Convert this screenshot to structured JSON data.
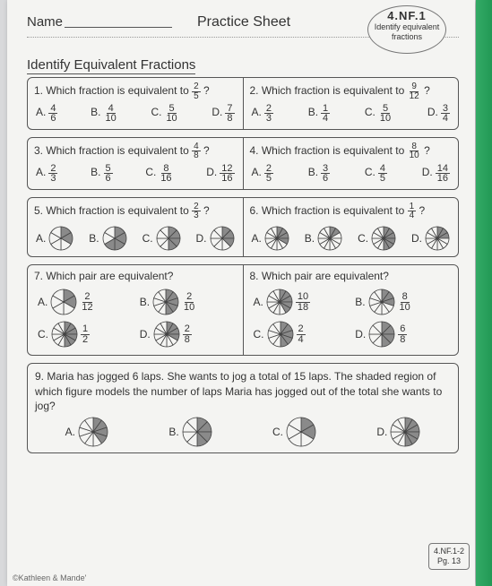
{
  "header": {
    "name_label": "Name",
    "sheet_title": "Practice Sheet",
    "standard": "4.NF.1",
    "badge_line1": "Identify equivalent",
    "badge_line2": "fractions"
  },
  "section_title": "Identify Equivalent Fractions",
  "questions": {
    "q1": {
      "num": "1.",
      "prompt": "Which fraction is equivalent to",
      "frac": {
        "n": "2",
        "d": "5"
      },
      "choices": [
        {
          "l": "A.",
          "n": "4",
          "d": "6"
        },
        {
          "l": "B.",
          "n": "4",
          "d": "10"
        },
        {
          "l": "C.",
          "n": "5",
          "d": "10"
        },
        {
          "l": "D.",
          "n": "7",
          "d": "8"
        }
      ]
    },
    "q2": {
      "num": "2.",
      "prompt": "Which fraction is equivalent to",
      "frac": {
        "n": "9",
        "d": "12"
      },
      "choices": [
        {
          "l": "A.",
          "n": "2",
          "d": "3"
        },
        {
          "l": "B.",
          "n": "1",
          "d": "4"
        },
        {
          "l": "C.",
          "n": "5",
          "d": "10"
        },
        {
          "l": "D.",
          "n": "3",
          "d": "4"
        }
      ]
    },
    "q3": {
      "num": "3.",
      "prompt": "Which fraction is equivalent to",
      "frac": {
        "n": "4",
        "d": "8"
      },
      "choices": [
        {
          "l": "A.",
          "n": "2",
          "d": "3"
        },
        {
          "l": "B.",
          "n": "5",
          "d": "6"
        },
        {
          "l": "C.",
          "n": "8",
          "d": "16"
        },
        {
          "l": "D.",
          "n": "12",
          "d": "16"
        }
      ]
    },
    "q4": {
      "num": "4.",
      "prompt": "Which fraction is equivalent to",
      "frac": {
        "n": "8",
        "d": "10"
      },
      "choices": [
        {
          "l": "A.",
          "n": "2",
          "d": "5"
        },
        {
          "l": "B.",
          "n": "3",
          "d": "6"
        },
        {
          "l": "C.",
          "n": "4",
          "d": "5"
        },
        {
          "l": "D.",
          "n": "14",
          "d": "16"
        }
      ]
    },
    "q5": {
      "num": "5.",
      "prompt": "Which fraction is equivalent to",
      "frac": {
        "n": "2",
        "d": "3"
      },
      "choices": [
        {
          "l": "A.",
          "slices": 6,
          "shaded": 2
        },
        {
          "l": "B.",
          "slices": 6,
          "shaded": 4
        },
        {
          "l": "C.",
          "slices": 8,
          "shaded": 4
        },
        {
          "l": "D.",
          "slices": 8,
          "shaded": 3
        }
      ]
    },
    "q6": {
      "num": "6.",
      "prompt": "Which fraction is equivalent to",
      "frac": {
        "n": "1",
        "d": "4"
      },
      "choices": [
        {
          "l": "A.",
          "slices": 12,
          "shaded": 4
        },
        {
          "l": "B.",
          "slices": 12,
          "shaded": 2
        },
        {
          "l": "C.",
          "slices": 12,
          "shaded": 6
        },
        {
          "l": "D.",
          "slices": 12,
          "shaded": 3
        }
      ]
    },
    "q7": {
      "num": "7.",
      "prompt": "Which pair are equivalent?",
      "choices": [
        {
          "l": "A.",
          "slices": 6,
          "shaded": 2,
          "n": "2",
          "d": "12"
        },
        {
          "l": "B.",
          "slices": 10,
          "shaded": 5,
          "n": "2",
          "d": "10"
        },
        {
          "l": "C.",
          "slices": 12,
          "shaded": 6,
          "n": "1",
          "d": "2"
        },
        {
          "l": "D.",
          "slices": 12,
          "shaded": 4,
          "n": "2",
          "d": "8"
        }
      ]
    },
    "q8": {
      "num": "8.",
      "prompt": "Which pair are equivalent?",
      "choices": [
        {
          "l": "A.",
          "slices": 12,
          "shaded": 5,
          "n": "10",
          "d": "18"
        },
        {
          "l": "B.",
          "slices": 10,
          "shaded": 3,
          "n": "8",
          "d": "10"
        },
        {
          "l": "C.",
          "slices": 10,
          "shaded": 5,
          "n": "2",
          "d": "4"
        },
        {
          "l": "D.",
          "slices": 8,
          "shaded": 4,
          "n": "6",
          "d": "8"
        }
      ]
    },
    "q9": {
      "num": "9.",
      "text": "Maria has jogged 6 laps. She wants to jog a total of 15 laps. The shaded region of which figure models the number of laps Maria has jogged out of the total she wants to jog?",
      "choices": [
        {
          "l": "A.",
          "slices": 10,
          "shaded": 4
        },
        {
          "l": "B.",
          "slices": 8,
          "shaded": 4
        },
        {
          "l": "C.",
          "slices": 6,
          "shaded": 2
        },
        {
          "l": "D.",
          "slices": 12,
          "shaded": 6
        }
      ]
    }
  },
  "footer": "©Kathleen & Mande'",
  "pgbox": {
    "l1": "4.NF.1-2",
    "l2": "Pg. 13"
  },
  "colors": {
    "shaded": "#8a8a8a",
    "unshaded": "#f4f4f2",
    "stroke": "#444"
  }
}
